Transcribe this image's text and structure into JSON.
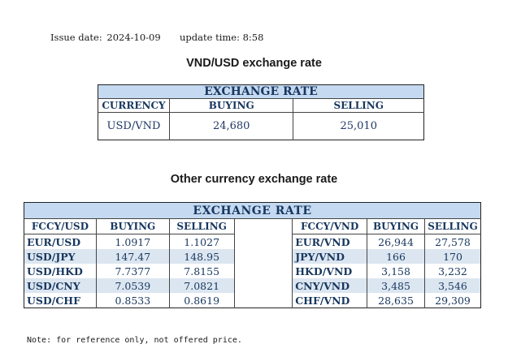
{
  "header": {
    "issue_label": "Issue date:",
    "issue_date": "2024-10-09",
    "update_label": "update time:",
    "update_time": "8:58"
  },
  "section1": {
    "title": "VND/USD exchange rate",
    "table_title": "EXCHANGE RATE",
    "columns": [
      "CURRENCY",
      "BUYING",
      "SELLING"
    ],
    "row": {
      "pair": "USD/VND",
      "buying": "24,680",
      "selling": "25,010"
    }
  },
  "section2": {
    "title": "Other currency exchange rate",
    "table_title": "EXCHANGE  RATE",
    "left_columns": [
      "FCCY/USD",
      "BUYING",
      "SELLING"
    ],
    "right_columns": [
      "FCCY/VND",
      "BUYING",
      "SELLING"
    ],
    "left_rows": [
      {
        "pair": "EUR/USD",
        "buying": "1.0917",
        "selling": "1.1027"
      },
      {
        "pair": "USD/JPY",
        "buying": "147.47",
        "selling": "148.95"
      },
      {
        "pair": "USD/HKD",
        "buying": "7.7377",
        "selling": "7.8155"
      },
      {
        "pair": "USD/CNY",
        "buying": "7.0539",
        "selling": "7.0821"
      },
      {
        "pair": "USD/CHF",
        "buying": "0.8533",
        "selling": "0.8619"
      }
    ],
    "right_rows": [
      {
        "pair": "EUR/VND",
        "buying": "26,944",
        "selling": "27,578"
      },
      {
        "pair": "JPY/VND",
        "buying": "166",
        "selling": "170"
      },
      {
        "pair": "HKD/VND",
        "buying": "3,158",
        "selling": "3,232"
      },
      {
        "pair": "CNY/VND",
        "buying": "3,485",
        "selling": "3,546"
      },
      {
        "pair": "CHF/VND",
        "buying": "28,635",
        "selling": "29,309"
      }
    ]
  },
  "note": "Note: for reference only, not offered price.",
  "colors": {
    "header_fill": "#c5d9f1",
    "row_shade": "#dce6f1",
    "header_text": "#17375e"
  }
}
